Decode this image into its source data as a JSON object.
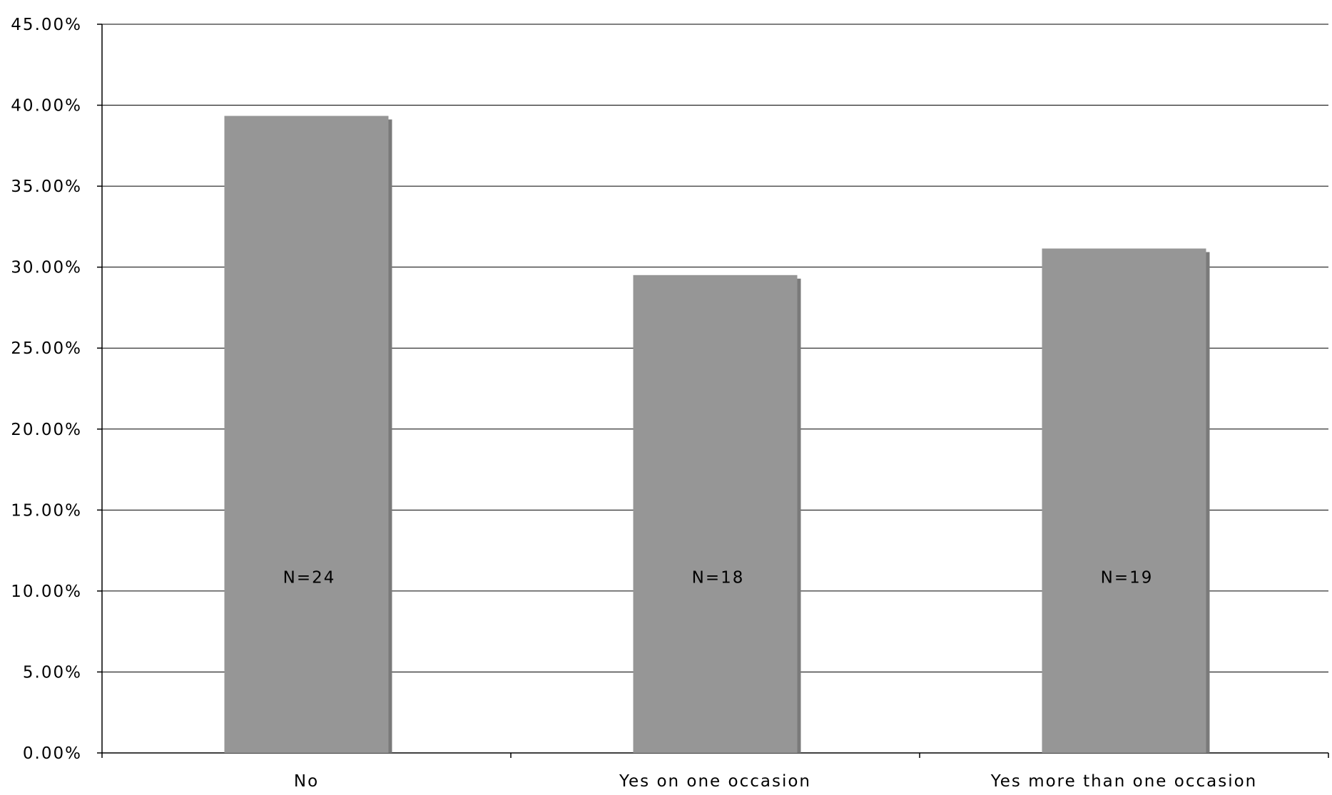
{
  "chart_data": {
    "type": "bar",
    "categories": [
      "No",
      "Yes on one occasion",
      "Yes more than one occasion"
    ],
    "values": [
      39.34,
      29.51,
      31.15
    ],
    "data_labels": [
      "N=24",
      "N=18",
      "N=19"
    ],
    "y_tick_labels": [
      "0.00%",
      "5.00%",
      "10.00%",
      "15.00%",
      "20.00%",
      "25.00%",
      "30.00%",
      "35.00%",
      "40.00%",
      "45.00%"
    ],
    "ylim": [
      0,
      45
    ],
    "y_step": 5,
    "title": "",
    "xlabel": "",
    "ylabel": "",
    "grid": true,
    "legend": "none",
    "colors": {
      "bar": "#969696",
      "bar_shadow": "#7a7a7a",
      "grid": "#000000",
      "axis": "#000000"
    }
  }
}
